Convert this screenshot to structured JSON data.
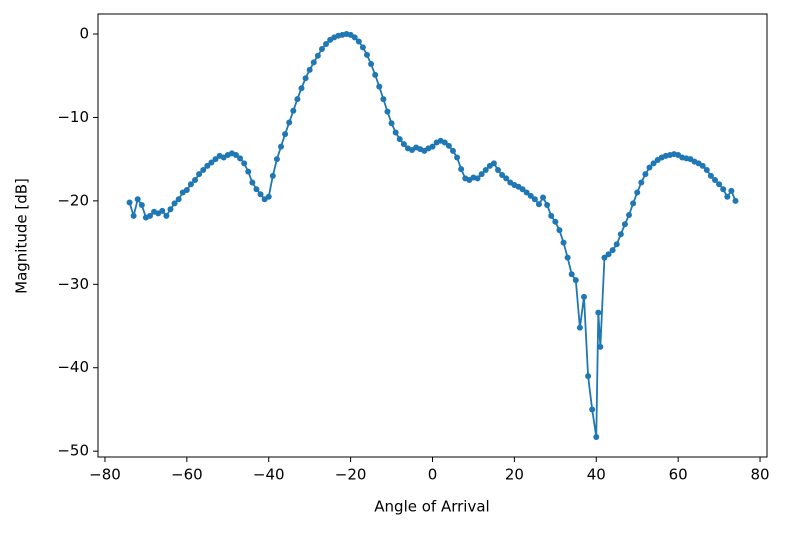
{
  "chart_data": {
    "type": "line",
    "xlabel": "Angle of Arrival",
    "ylabel": "Magnitude [dB]",
    "x": [
      -74,
      -73,
      -72,
      -71,
      -70,
      -69,
      -68,
      -67,
      -66,
      -65,
      -64,
      -63,
      -62,
      -61,
      -60,
      -59,
      -58,
      -57,
      -56,
      -55,
      -54,
      -53,
      -52,
      -51,
      -50,
      -49,
      -48,
      -47,
      -46,
      -45,
      -44,
      -43,
      -42,
      -41,
      -40,
      -39,
      -38,
      -37,
      -36,
      -35,
      -34,
      -33,
      -32,
      -31,
      -30,
      -29,
      -28,
      -27,
      -26,
      -25,
      -24,
      -23,
      -22,
      -21,
      -20,
      -19,
      -18,
      -17,
      -16,
      -15,
      -14,
      -13,
      -12,
      -11,
      -10,
      -9,
      -8,
      -7,
      -6,
      -5,
      -4,
      -3,
      -2,
      -1,
      0,
      1,
      2,
      3,
      4,
      5,
      6,
      7,
      8,
      9,
      10,
      11,
      12,
      13,
      14,
      15,
      16,
      17,
      18,
      19,
      20,
      21,
      22,
      23,
      24,
      25,
      26,
      27,
      28,
      29,
      30,
      31,
      32,
      33,
      34,
      35,
      36,
      37,
      38,
      39,
      40,
      40.5,
      41,
      42,
      43,
      44,
      45,
      46,
      47,
      48,
      49,
      50,
      51,
      52,
      53,
      54,
      55,
      56,
      57,
      58,
      59,
      60,
      61,
      62,
      63,
      64,
      65,
      66,
      67,
      68,
      69,
      70,
      71,
      72,
      73,
      74
    ],
    "series": [
      {
        "color": "#1f77b4",
        "values": [
          -20.2,
          -21.8,
          -19.8,
          -20.5,
          -22,
          -21.8,
          -21.3,
          -21.5,
          -21.2,
          -21.8,
          -21,
          -20.3,
          -19.8,
          -19,
          -18.7,
          -18,
          -17.5,
          -16.8,
          -16.3,
          -15.8,
          -15.4,
          -15,
          -14.6,
          -14.8,
          -14.5,
          -14.3,
          -14.5,
          -14.9,
          -15.5,
          -16.5,
          -17.8,
          -18.6,
          -19.2,
          -19.8,
          -19.5,
          -17,
          -15,
          -13.5,
          -12,
          -10.6,
          -9.2,
          -7.8,
          -6.5,
          -5.3,
          -4.3,
          -3.4,
          -2.6,
          -1.8,
          -1.2,
          -0.7,
          -0.4,
          -0.2,
          -0.1,
          0,
          -0.1,
          -0.4,
          -0.9,
          -1.6,
          -2.5,
          -3.6,
          -4.9,
          -6.3,
          -7.8,
          -9.3,
          -10.7,
          -11.8,
          -12.6,
          -13.2,
          -13.7,
          -13.9,
          -13.6,
          -13.8,
          -14,
          -13.7,
          -13.5,
          -13,
          -12.8,
          -13,
          -13.4,
          -14,
          -14.8,
          -16.2,
          -17.3,
          -17.5,
          -17.2,
          -17.3,
          -16.8,
          -16.3,
          -15.8,
          -15.5,
          -16.3,
          -16.9,
          -17.3,
          -17.8,
          -18.1,
          -18.3,
          -18.6,
          -19,
          -19.4,
          -19.8,
          -20.4,
          -19.6,
          -20.5,
          -21.8,
          -22.5,
          -23.5,
          -25,
          -26.8,
          -28.8,
          -29.5,
          -35.2,
          -31.5,
          -41,
          -45,
          -48.3,
          -33.4,
          -37.5,
          -26.8,
          -26.4,
          -25.9,
          -25.2,
          -24,
          -22.8,
          -21.7,
          -20.3,
          -19,
          -17.8,
          -16.8,
          -16,
          -15.5,
          -15.1,
          -14.8,
          -14.6,
          -14.5,
          -14.4,
          -14.5,
          -14.8,
          -14.9,
          -15,
          -15.3,
          -15.5,
          -15.8,
          -16.3,
          -17,
          -17.5,
          -18,
          -18.6,
          -19.5,
          -18.8,
          -20
        ]
      }
    ],
    "xlim": [
      -81.7,
      81.7
    ],
    "ylim": [
      -50.7,
      2.4
    ],
    "xticks": [
      {
        "value": -80,
        "label": "−80"
      },
      {
        "value": -60,
        "label": "−60"
      },
      {
        "value": -40,
        "label": "−40"
      },
      {
        "value": -20,
        "label": "−20"
      },
      0,
      20,
      40,
      60,
      80
    ],
    "yticks": [
      0,
      {
        "value": -10,
        "label": "−10"
      },
      {
        "value": -20,
        "label": "−20"
      },
      {
        "value": -30,
        "label": "−30"
      },
      {
        "value": -40,
        "label": "−40"
      },
      {
        "value": -50,
        "label": "−50"
      }
    ],
    "grid": false
  }
}
